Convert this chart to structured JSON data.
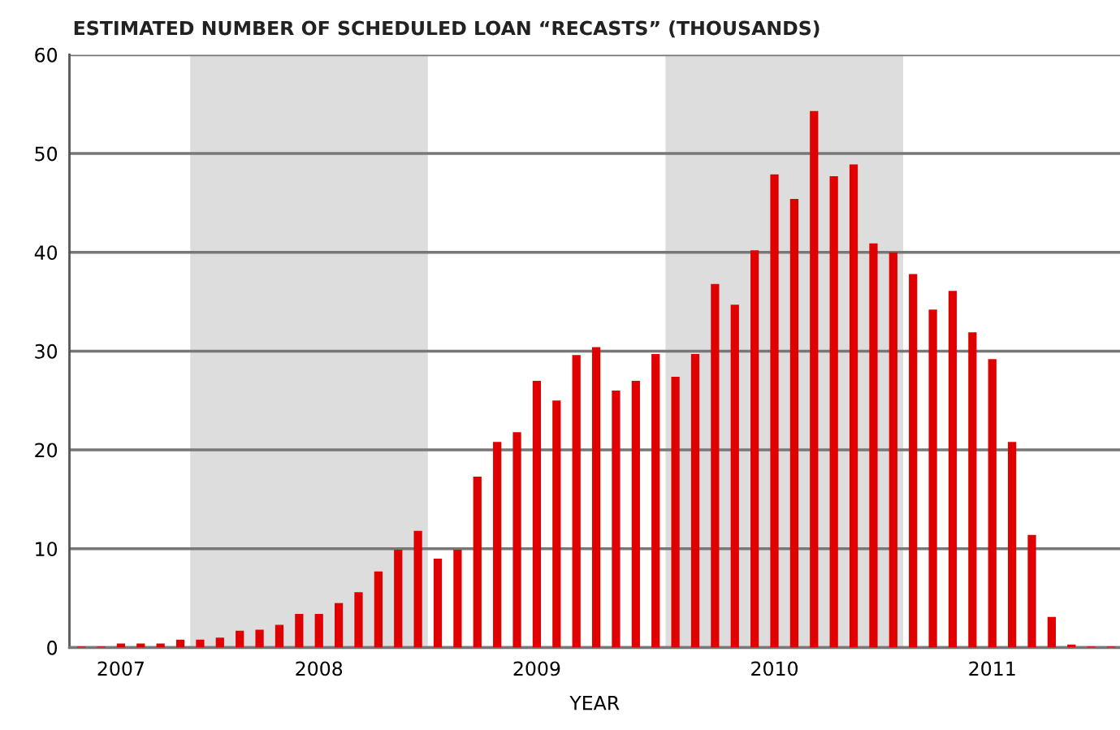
{
  "chart_data": {
    "type": "bar",
    "title": "ESTIMATED NUMBER OF SCHEDULED LOAN “RECASTS” (THOUSANDS)",
    "xlabel": "YEAR",
    "categories": [
      null,
      null,
      "2007",
      null,
      null,
      null,
      null,
      null,
      null,
      null,
      null,
      null,
      "2008",
      null,
      null,
      null,
      null,
      null,
      null,
      null,
      null,
      null,
      null,
      "2009",
      null,
      null,
      null,
      null,
      null,
      null,
      null,
      null,
      null,
      null,
      null,
      "2010",
      null,
      null,
      null,
      null,
      null,
      null,
      null,
      null,
      null,
      null,
      "2011",
      null,
      null,
      null,
      null,
      null,
      null
    ],
    "series": [
      {
        "color": "#e00000",
        "values": [
          0.1,
          0.1,
          0.4,
          0.4,
          0.4,
          0.8,
          0.8,
          1.0,
          1.7,
          1.8,
          2.3,
          3.4,
          3.4,
          4.5,
          5.6,
          7.7,
          9.9,
          11.8,
          9.0,
          9.9,
          17.3,
          20.8,
          21.8,
          27,
          25,
          29.6,
          30.4,
          26,
          27,
          29.7,
          27.4,
          29.7,
          36.8,
          34.7,
          40.2,
          47.9,
          45.4,
          54.3,
          47.7,
          48.9,
          40.9,
          40,
          37.8,
          34.2,
          36.1,
          31.9,
          29.2,
          20.8,
          11.4,
          3.1,
          0.3,
          0.1,
          0.1
        ]
      }
    ],
    "ylim": [
      0,
      60
    ],
    "yticks": [
      0,
      10,
      20,
      30,
      40,
      50,
      60
    ],
    "grid": "y"
  }
}
